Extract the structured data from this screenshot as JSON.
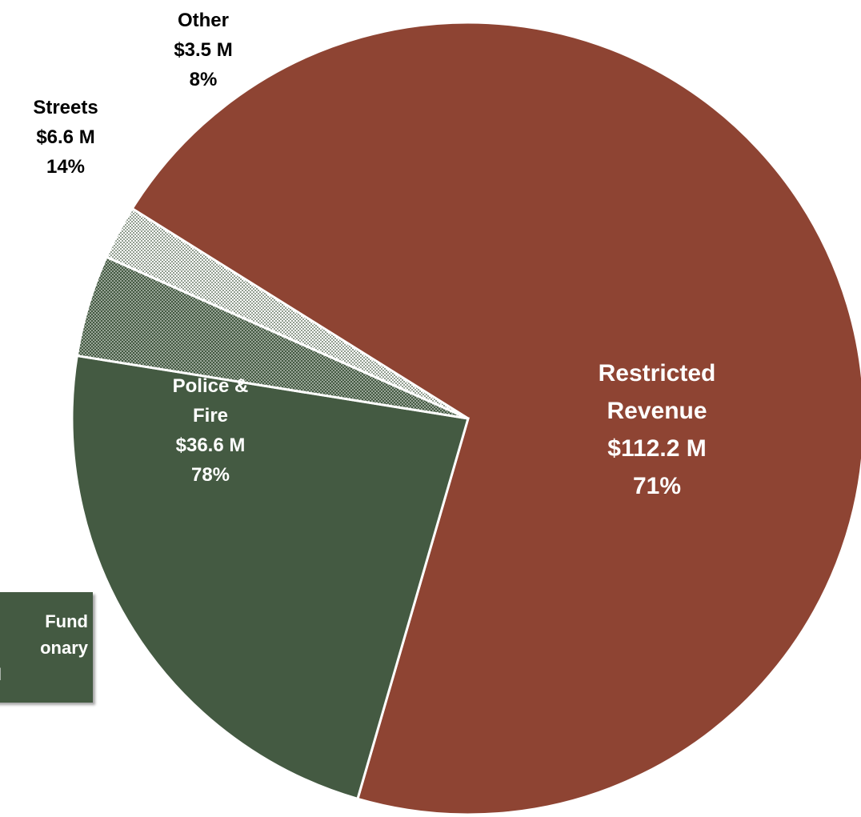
{
  "colors": {
    "restricted": "#8E4433",
    "police_fire": "#445A42",
    "streets": "#445A42",
    "other": "#A9B8A7",
    "outline": "#ffffff",
    "label_dark": "#000000",
    "label_light": "#ffffff"
  },
  "callout": {
    "line1": "Fund",
    "line2": "onary",
    "line3": "M"
  },
  "chart_data": {
    "type": "pie",
    "slices": [
      {
        "label": "Restricted Revenue",
        "amount": "$112.2 M",
        "percent": "71%",
        "value": 112.2,
        "text_color": "label_light",
        "pattern": "solid"
      },
      {
        "label": "Police & Fire",
        "amount": "$36.6 M",
        "percent": "78%",
        "value": 36.6,
        "text_color": "label_light",
        "pattern": "solid"
      },
      {
        "label": "Streets",
        "amount": "$6.6 M",
        "percent": "14%",
        "value": 6.6,
        "text_color": "label_dark",
        "pattern": "dotted"
      },
      {
        "label": "Other",
        "amount": "$3.5 M",
        "percent": "8%",
        "value": 3.5,
        "text_color": "label_dark",
        "pattern": "dotted-light"
      }
    ],
    "label_lines": {
      "Restricted Revenue": [
        "Restricted",
        "Revenue",
        "$112.2 M",
        "71%"
      ],
      "Police & Fire": [
        "Police &",
        "Fire",
        "$36.6 M",
        "78%"
      ],
      "Streets": [
        "Streets",
        "$6.6 M",
        "14%"
      ],
      "Other": [
        "Other",
        "$3.5 M",
        "8%"
      ]
    }
  }
}
